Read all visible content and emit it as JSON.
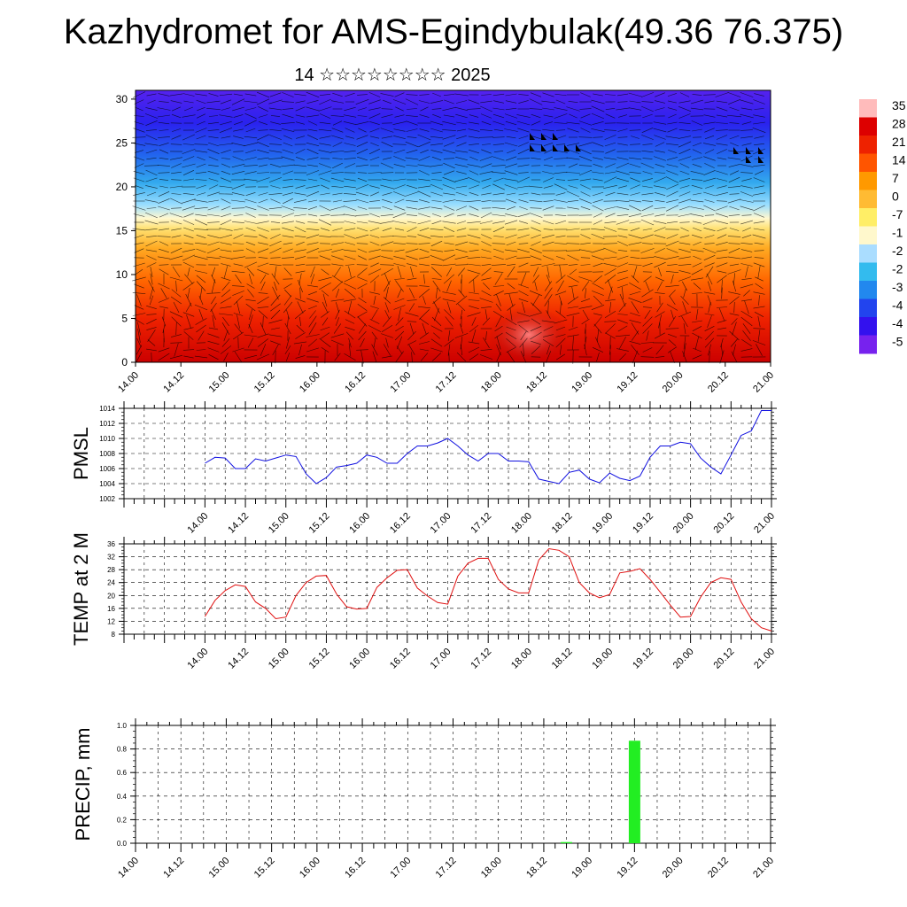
{
  "title": "Kazhydromet for AMS-Egindybulak(49.36 76.375)",
  "subtitle": "14 ☆☆☆☆☆☆☆☆ 2025",
  "colors": {
    "pmsl_line": "#1010e0",
    "temp_line": "#e01010",
    "precip_bar": "#22ee22"
  },
  "chart_data": [
    {
      "type": "heatmap",
      "name": "cross-section",
      "x_tick_labels": [
        "14.00",
        "14.12",
        "15.00",
        "15.12",
        "16.00",
        "16.12",
        "17.00",
        "17.12",
        "18.00",
        "18.12",
        "19.00",
        "19.12",
        "20.00",
        "20.12",
        "21.00"
      ],
      "y_ticks": [
        0,
        5,
        10,
        15,
        20,
        25,
        30
      ],
      "ylim": [
        0,
        31
      ],
      "colorbar_labels": [
        "35",
        "28",
        "21",
        "14",
        "7",
        "0",
        "-7",
        "-1",
        "-2",
        "-2",
        "-3",
        "-4",
        "-4",
        "-5"
      ],
      "colorbar_colors": [
        "#ffbbbb",
        "#dd0000",
        "#ee2200",
        "#ff5500",
        "#ff9900",
        "#ffbb33",
        "#ffee66",
        "#fff8cc",
        "#aaddff",
        "#33bbee",
        "#2288ee",
        "#2244ee",
        "#3311ee",
        "#7722ee"
      ]
    },
    {
      "type": "line",
      "ylabel": "PMSL",
      "ylim": [
        1002,
        1014
      ],
      "y_ticks": [
        1002,
        1004,
        1006,
        1008,
        1010,
        1012,
        1014
      ],
      "x_tick_labels": [
        "14.00",
        "14.12",
        "15.00",
        "15.12",
        "16.00",
        "16.12",
        "17.00",
        "17.12",
        "18.00",
        "18.12",
        "19.00",
        "19.12",
        "20.00",
        "20.12",
        "21.00"
      ],
      "x_range_hours": [
        -24,
        168
      ],
      "series": [
        {
          "x": [
            0,
            3,
            6,
            9,
            12,
            15,
            18,
            21,
            24,
            27,
            30,
            33,
            36,
            39,
            42,
            45,
            48,
            51,
            54,
            57,
            60,
            63,
            66,
            69,
            72,
            75,
            78,
            81,
            84,
            87,
            90,
            93,
            96,
            99,
            102,
            105,
            108,
            111,
            114,
            117,
            120,
            123,
            126,
            129,
            132,
            135,
            138,
            141,
            144,
            147,
            150,
            153,
            156,
            159,
            162,
            165,
            168
          ],
          "values": [
            1006.7,
            1007.5,
            1007.4,
            1006.0,
            1006.0,
            1007.3,
            1007.0,
            1007.4,
            1007.8,
            1007.6,
            1005.3,
            1004.0,
            1004.8,
            1006.2,
            1006.4,
            1006.7,
            1007.8,
            1007.5,
            1006.7,
            1006.7,
            1008.0,
            1009.0,
            1009.0,
            1009.4,
            1010.0,
            1009.0,
            1007.8,
            1007.0,
            1008.0,
            1008.0,
            1007.0,
            1007.0,
            1006.9,
            1004.6,
            1004.3,
            1004.0,
            1005.5,
            1005.8,
            1004.6,
            1004.1,
            1005.4,
            1004.7,
            1004.4,
            1005.0,
            1007.5,
            1009.0,
            1009.0,
            1009.5,
            1009.3,
            1007.4,
            1006.2,
            1005.3,
            1007.8,
            1010.4,
            1011.0,
            1013.7,
            1013.7
          ]
        }
      ]
    },
    {
      "type": "line",
      "ylabel": "TEMP at 2 M",
      "ylim": [
        8,
        36
      ],
      "y_ticks": [
        8,
        12,
        16,
        20,
        24,
        28,
        32,
        36
      ],
      "x_tick_labels": [
        "14.00",
        "14.12",
        "15.00",
        "15.12",
        "16.00",
        "16.12",
        "17.00",
        "17.12",
        "18.00",
        "18.12",
        "19.00",
        "19.12",
        "20.00",
        "20.12",
        "21.00"
      ],
      "x_range_hours": [
        -24,
        168
      ],
      "series": [
        {
          "x": [
            0,
            3,
            6,
            9,
            12,
            15,
            18,
            21,
            24,
            27,
            30,
            33,
            36,
            39,
            42,
            45,
            48,
            51,
            54,
            57,
            60,
            63,
            66,
            69,
            72,
            75,
            78,
            81,
            84,
            87,
            90,
            93,
            96,
            99,
            102,
            105,
            108,
            111,
            114,
            117,
            120,
            123,
            126,
            129,
            132,
            135,
            138,
            141,
            144,
            147,
            150,
            153,
            156,
            159,
            162,
            165,
            168
          ],
          "values": [
            13.5,
            18.5,
            21.5,
            23.3,
            22.8,
            18.0,
            16.0,
            12.8,
            13.3,
            20.0,
            24.0,
            26.0,
            26.2,
            20.5,
            16.5,
            15.8,
            16.0,
            22.5,
            25.5,
            27.8,
            28.0,
            22.3,
            19.8,
            17.8,
            17.3,
            26.0,
            30.0,
            31.5,
            31.5,
            25.0,
            22.0,
            20.8,
            20.8,
            31.0,
            34.5,
            34.0,
            32.0,
            24.0,
            20.8,
            19.3,
            20.3,
            27.0,
            27.5,
            28.3,
            25.0,
            21.0,
            17.0,
            13.3,
            13.5,
            19.5,
            24.0,
            25.5,
            25.0,
            18.0,
            12.8,
            10.0,
            9.0
          ]
        }
      ]
    },
    {
      "type": "bar",
      "ylabel": "PRECIP, mm",
      "ylim": [
        0,
        1.0
      ],
      "y_ticks": [
        "0.0",
        "0.2",
        "0.4",
        "0.6",
        "0.8",
        "1.0"
      ],
      "x_tick_labels": [
        "14.00",
        "14.12",
        "15.00",
        "15.12",
        "16.00",
        "16.12",
        "17.00",
        "17.12",
        "18.00",
        "18.12",
        "19.00",
        "19.12",
        "20.00",
        "20.12",
        "21.00"
      ],
      "x_range_hours": [
        0,
        168
      ],
      "bars": [
        {
          "x": 114,
          "value": 0.01
        },
        {
          "x": 132,
          "value": 0.87
        }
      ]
    }
  ]
}
